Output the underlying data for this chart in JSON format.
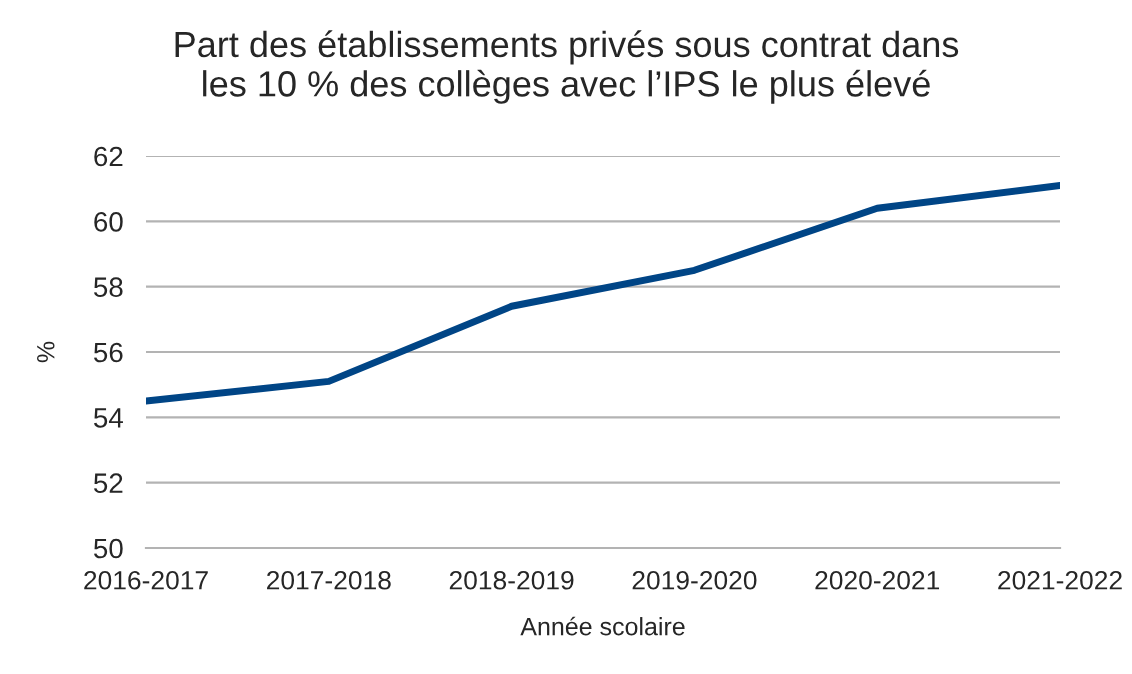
{
  "chart_data": {
    "type": "line",
    "title": "Part des établissements privés sous contrat dans\nles 10 % des collèges avec l’IPS le plus élevé",
    "xlabel": "Année scolaire",
    "ylabel": "%",
    "categories": [
      "2016-2017",
      "2017-2018",
      "2018-2019",
      "2019-2020",
      "2020-2021",
      "2021-2022"
    ],
    "series": [
      {
        "color": "#004586",
        "values": [
          54.5,
          55.1,
          57.4,
          58.5,
          60.4,
          61.1
        ]
      }
    ],
    "ylim": [
      50,
      62
    ],
    "yticks": [
      50,
      52,
      54,
      56,
      58,
      60,
      62
    ],
    "grid": "y",
    "marker": "none",
    "line_style": "solid"
  }
}
